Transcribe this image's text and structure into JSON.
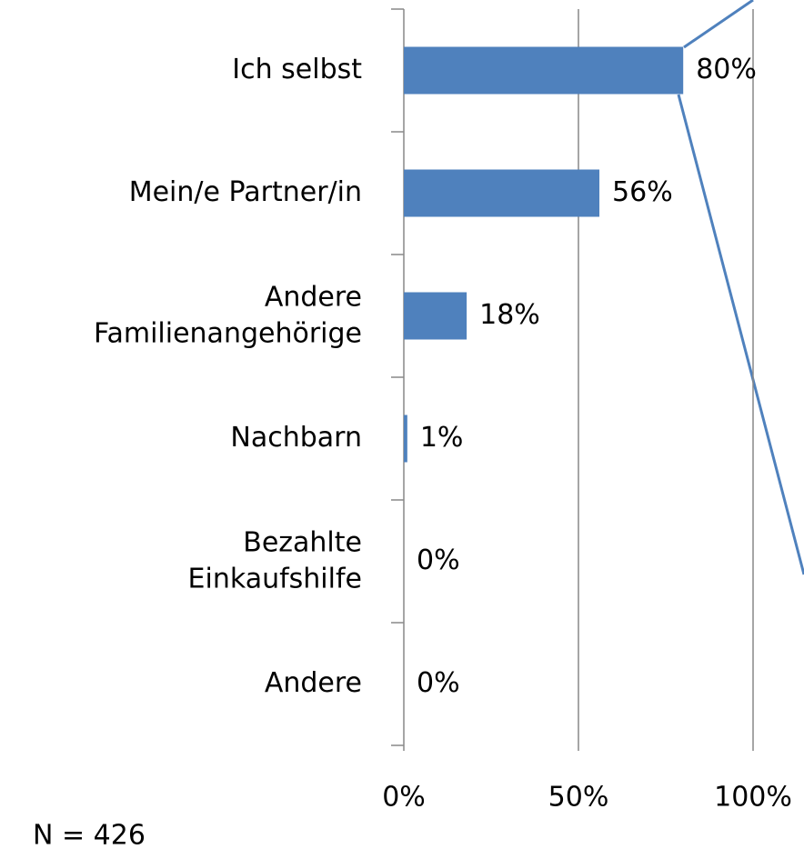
{
  "chart_data": {
    "type": "bar",
    "orientation": "horizontal",
    "categories": [
      "Ich selbst",
      "Mein/e Partner/in",
      "Andere\nFamilienangehörige",
      "Nachbarn",
      "Bezahlte\nEinkaufshilfe",
      "Andere"
    ],
    "values": [
      80,
      56,
      18,
      1,
      0,
      0
    ],
    "value_labels": [
      "80%",
      "56%",
      "18%",
      "1%",
      "0%",
      "0%"
    ],
    "color": "#4f81bd",
    "xlim": [
      0,
      100
    ],
    "xticks": [
      {
        "value": 0,
        "label": "0%"
      },
      {
        "value": 50,
        "label": "50%"
      },
      {
        "value": 100,
        "label": "100%"
      }
    ],
    "grid": true,
    "annotation": "N = 426"
  }
}
